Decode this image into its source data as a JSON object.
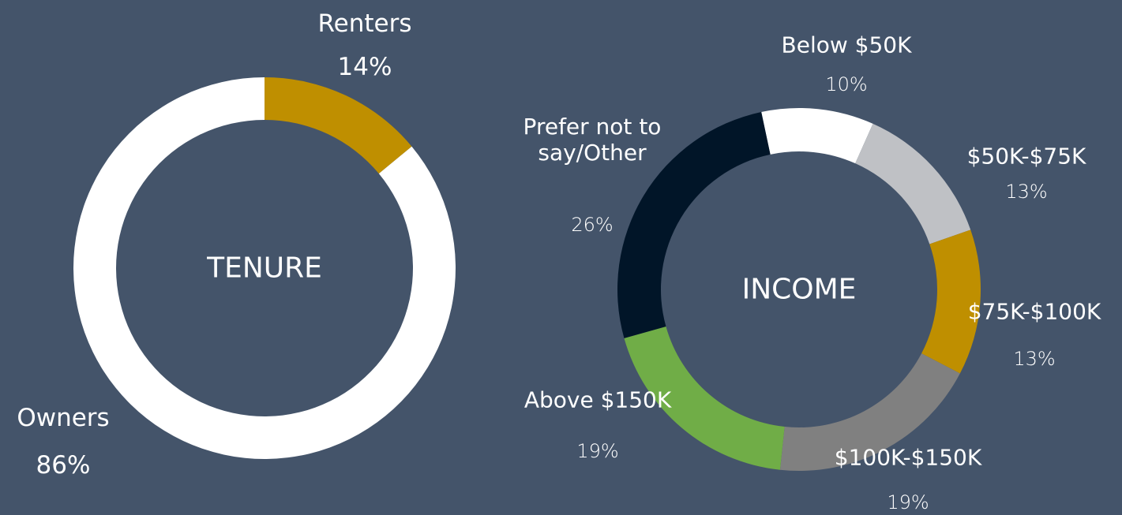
{
  "chart_data": [
    {
      "type": "donut",
      "center_label": "TENURE",
      "categories": [
        "Renters",
        "Owners"
      ],
      "values": [
        14,
        86
      ],
      "value_labels": [
        "14%",
        "86%"
      ],
      "colors": [
        "#bf8f00",
        "#ffffff"
      ]
    },
    {
      "type": "donut",
      "center_label": "INCOME",
      "categories": [
        "Below $50K",
        "$50K-$75K",
        "$75K-$100K",
        "$100K-$150K",
        "Above $150K",
        "Prefer not to say/Other"
      ],
      "values": [
        10,
        13,
        13,
        19,
        19,
        26
      ],
      "value_labels": [
        "10%",
        "13%",
        "13%",
        "19%",
        "19%",
        "26%"
      ],
      "colors": [
        "#ffffff",
        "#bfc1c5",
        "#bf8f00",
        "#808080",
        "#70ad47",
        "#011528"
      ]
    }
  ]
}
